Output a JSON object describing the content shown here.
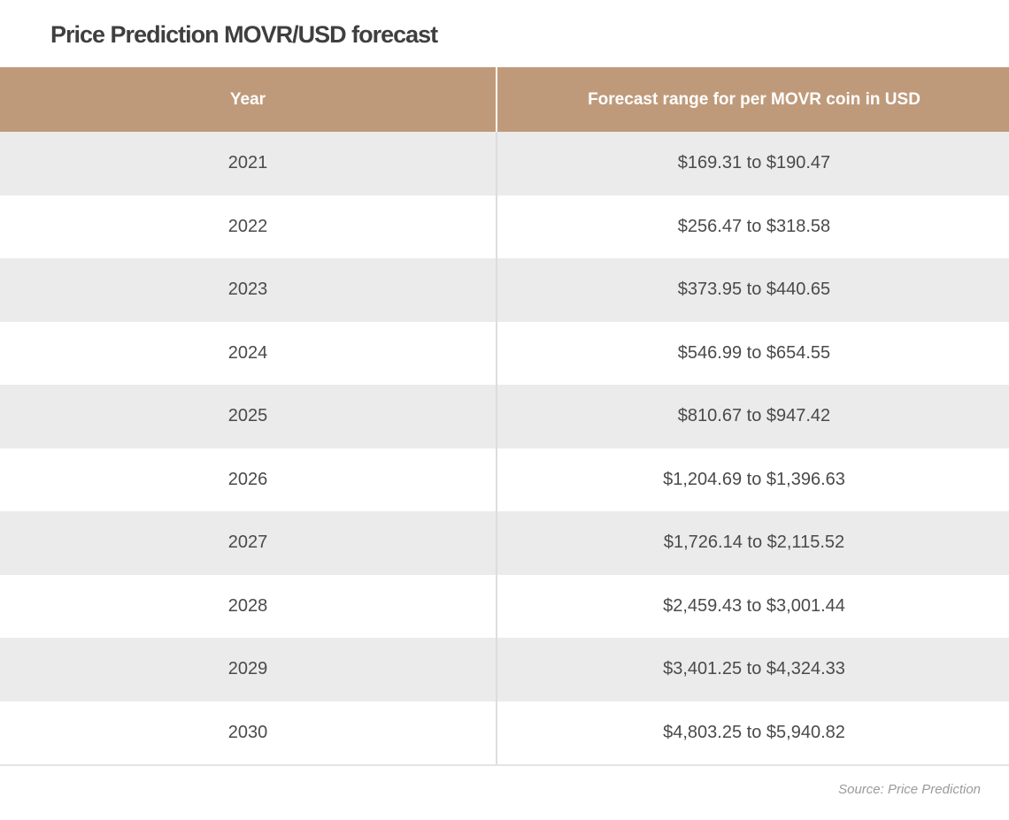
{
  "title": "Price Prediction MOVR/USD forecast",
  "table": {
    "headers": [
      "Year",
      "Forecast range for per MOVR coin in USD"
    ],
    "rows": [
      {
        "year": "2021",
        "range": "$169.31 to $190.47"
      },
      {
        "year": "2022",
        "range": "$256.47 to $318.58"
      },
      {
        "year": "2023",
        "range": "$373.95 to $440.65"
      },
      {
        "year": "2024",
        "range": "$546.99 to $654.55"
      },
      {
        "year": "2025",
        "range": "$810.67 to $947.42"
      },
      {
        "year": "2026",
        "range": "$1,204.69 to $1,396.63"
      },
      {
        "year": "2027",
        "range": "$1,726.14 to $2,115.52"
      },
      {
        "year": "2028",
        "range": "$2,459.43 to $3,001.44"
      },
      {
        "year": "2029",
        "range": "$3,401.25 to $4,324.33"
      },
      {
        "year": "2030",
        "range": "$4,803.25 to $5,940.82"
      }
    ]
  },
  "source": "Source: Price Prediction",
  "colors": {
    "header_background": "#bf9a7a",
    "header_text": "#ffffff",
    "stripe_row": "#ebebeb",
    "plain_row": "#ffffff",
    "title_text": "#3f3f3f"
  }
}
